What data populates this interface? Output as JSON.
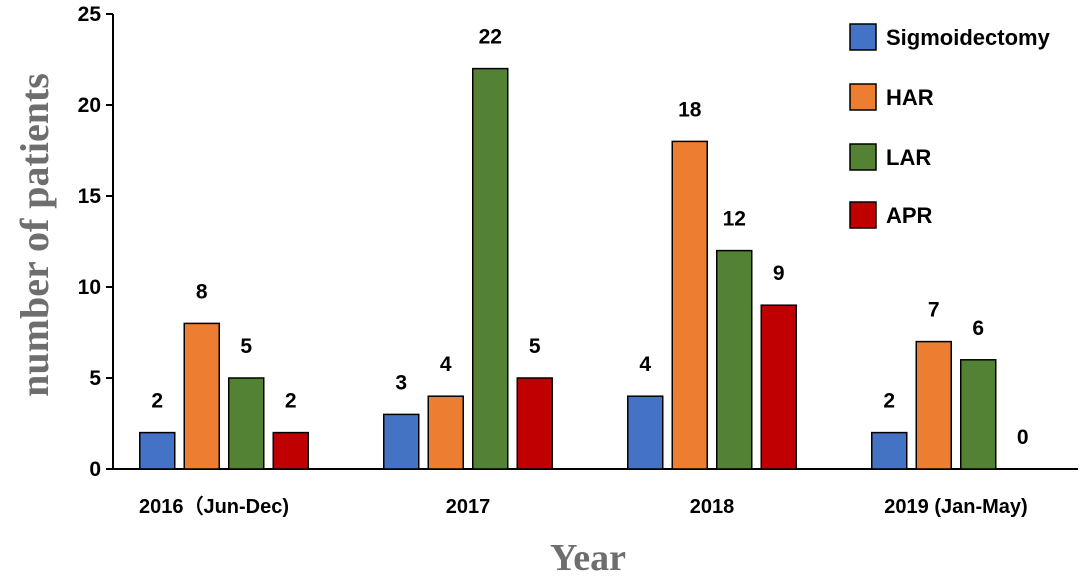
{
  "chart_data": {
    "type": "bar",
    "categories": [
      "2016（Jun-Dec)",
      "2017",
      "2018",
      "2019 (Jan-May)"
    ],
    "series": [
      {
        "name": "Sigmoidectomy",
        "values": [
          2,
          3,
          4,
          2
        ],
        "color": "#4472c4"
      },
      {
        "name": "HAR",
        "values": [
          8,
          4,
          18,
          7
        ],
        "color": "#ed7d31"
      },
      {
        "name": "LAR",
        "values": [
          5,
          22,
          12,
          6
        ],
        "color": "#548235"
      },
      {
        "name": "APR",
        "values": [
          2,
          5,
          9,
          0
        ],
        "color": "#c00000"
      }
    ],
    "title": "",
    "xlabel": "Year",
    "ylabel": "number of patients",
    "ylim": [
      0,
      25
    ],
    "yticks": [
      0,
      5,
      10,
      15,
      20,
      25
    ],
    "grid": false,
    "legend_position": "top-right"
  }
}
